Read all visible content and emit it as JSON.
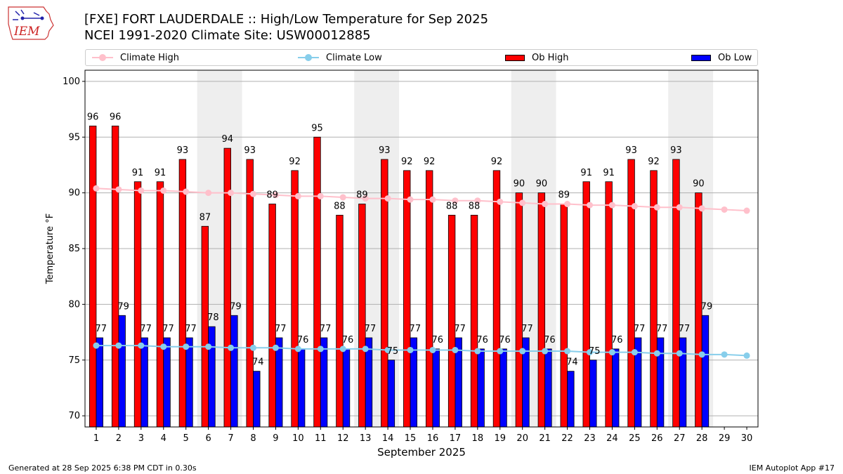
{
  "header": {
    "logo_text": "IEM",
    "title_line1": "[FXE] FORT LAUDERDALE :: High/Low Temperature for Sep 2025",
    "title_line2": "NCEI 1991-2020 Climate Site: USW00012885"
  },
  "legend": {
    "climate_high": "Climate High",
    "climate_low": "Climate Low",
    "ob_high": "Ob High",
    "ob_low": "Ob Low"
  },
  "colors": {
    "ob_high": "#ff0000",
    "ob_low": "#0000ff",
    "climate_high": "#ffc0cb",
    "climate_low": "#87ceeb",
    "weekend_shade": "#eeeeee",
    "grid": "#b0b0b0"
  },
  "footer": {
    "left": "Generated at 28 Sep 2025 6:38 PM CDT in 0.30s",
    "right": "IEM Autoplot App #17"
  },
  "chart_data": {
    "type": "bar",
    "title": "[FXE] FORT LAUDERDALE :: High/Low Temperature for Sep 2025",
    "subtitle": "NCEI 1991-2020 Climate Site: USW00012885",
    "xlabel": "September 2025",
    "ylabel": "Temperature °F",
    "ylim": [
      69,
      101
    ],
    "yticks": [
      70,
      75,
      80,
      85,
      90,
      95,
      100
    ],
    "xlim": [
      0.5,
      30.5
    ],
    "categories": [
      "1",
      "2",
      "3",
      "4",
      "5",
      "6",
      "7",
      "8",
      "9",
      "10",
      "11",
      "12",
      "13",
      "14",
      "15",
      "16",
      "17",
      "18",
      "19",
      "20",
      "21",
      "22",
      "23",
      "24",
      "25",
      "26",
      "27",
      "28",
      "29",
      "30"
    ],
    "grid": "horizontal",
    "legend_placement": "top",
    "weekend_shading_days": [
      [
        6,
        7
      ],
      [
        13,
        14
      ],
      [
        20,
        21
      ],
      [
        27,
        28
      ]
    ],
    "series": [
      {
        "name": "Ob High",
        "kind": "bar",
        "values": [
          96,
          96,
          91,
          91,
          93,
          87,
          94,
          93,
          89,
          92,
          95,
          88,
          89,
          93,
          92,
          92,
          88,
          88,
          92,
          90,
          90,
          89,
          91,
          91,
          93,
          92,
          93,
          90,
          null,
          null
        ]
      },
      {
        "name": "Ob Low",
        "kind": "bar",
        "values": [
          77,
          79,
          77,
          77,
          77,
          78,
          79,
          74,
          77,
          76,
          77,
          76,
          77,
          75,
          77,
          76,
          77,
          76,
          76,
          77,
          76,
          74,
          75,
          76,
          77,
          77,
          77,
          79,
          null,
          null
        ]
      },
      {
        "name": "Climate High",
        "kind": "line",
        "values": [
          90.4,
          90.3,
          90.2,
          90.2,
          90.1,
          90.0,
          90.0,
          89.9,
          89.8,
          89.7,
          89.7,
          89.6,
          89.5,
          89.5,
          89.4,
          89.4,
          89.3,
          89.3,
          89.2,
          89.1,
          89.0,
          89.0,
          88.9,
          88.9,
          88.8,
          88.7,
          88.7,
          88.6,
          88.5,
          88.4
        ]
      },
      {
        "name": "Climate Low",
        "kind": "line",
        "values": [
          76.3,
          76.3,
          76.3,
          76.2,
          76.2,
          76.2,
          76.1,
          76.1,
          76.1,
          76.0,
          76.0,
          76.0,
          76.0,
          75.9,
          75.9,
          75.9,
          75.9,
          75.8,
          75.8,
          75.8,
          75.8,
          75.8,
          75.7,
          75.7,
          75.7,
          75.6,
          75.6,
          75.5,
          75.5,
          75.4
        ]
      }
    ]
  }
}
